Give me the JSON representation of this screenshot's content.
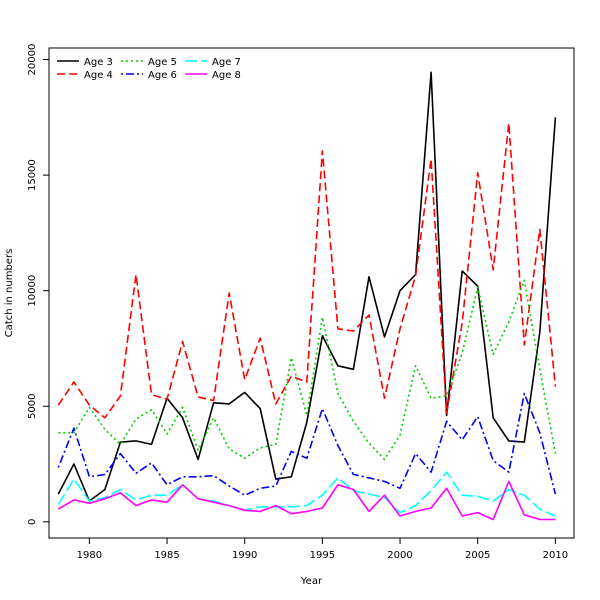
{
  "chart_data": {
    "type": "line",
    "title": "",
    "xlabel": "Year",
    "ylabel": "Catch in numbers",
    "xlim": [
      1977.4,
      2011.2
    ],
    "ylim": [
      -700,
      20500
    ],
    "x_ticks": [
      1980,
      1985,
      1990,
      1995,
      2000,
      2005,
      2010
    ],
    "y_ticks": [
      0,
      5000,
      10000,
      15000,
      20000
    ],
    "grid": false,
    "legend_position": "top-left",
    "x": [
      1978,
      1979,
      1980,
      1981,
      1982,
      1983,
      1984,
      1985,
      1986,
      1987,
      1988,
      1989,
      1990,
      1991,
      1992,
      1993,
      1994,
      1995,
      1996,
      1997,
      1998,
      1999,
      2000,
      2001,
      2002,
      2003,
      2004,
      2005,
      2006,
      2007,
      2008,
      2009,
      2010
    ],
    "series": [
      {
        "name": "Age 3",
        "color": "#000000",
        "dash": "solid",
        "values": [
          1200,
          2500,
          900,
          1400,
          3450,
          3500,
          3350,
          5350,
          4500,
          2700,
          5150,
          5100,
          5600,
          4900,
          1850,
          1950,
          4300,
          8050,
          6750,
          6600,
          10600,
          8000,
          10000,
          10700,
          19450,
          4600,
          10850,
          10200,
          4500,
          3500,
          3450,
          8200,
          17500
        ]
      },
      {
        "name": "Age 4",
        "color": "#ff0000",
        "dash": "dashed",
        "values": [
          5050,
          6050,
          5050,
          4500,
          5450,
          10700,
          5500,
          5300,
          7800,
          5400,
          5250,
          9900,
          6150,
          7950,
          5100,
          6300,
          6050,
          16050,
          8350,
          8250,
          8950,
          5350,
          8350,
          10650,
          15700,
          4700,
          8600,
          15100,
          10900,
          17250,
          7650,
          12650,
          5850
        ]
      },
      {
        "name": "Age 5",
        "color": "#00cd00",
        "dash": "dotted",
        "values": [
          3850,
          3850,
          4950,
          4000,
          3350,
          4450,
          4850,
          3800,
          4950,
          3100,
          4500,
          3150,
          2750,
          3200,
          3350,
          7100,
          4600,
          8850,
          5550,
          4350,
          3400,
          2700,
          3750,
          6750,
          5350,
          5450,
          7300,
          10150,
          7250,
          8650,
          10450,
          6600,
          2950
        ]
      },
      {
        "name": "Age 6",
        "color": "#0000ff",
        "dash": "dotdash",
        "values": [
          2350,
          4050,
          1950,
          2050,
          2950,
          2100,
          2550,
          1600,
          1950,
          1950,
          2000,
          1550,
          1150,
          1450,
          1550,
          3050,
          2750,
          4900,
          3300,
          2050,
          1900,
          1750,
          1450,
          2950,
          2150,
          4350,
          3550,
          4550,
          2650,
          2150,
          5550,
          3850,
          1200
        ]
      },
      {
        "name": "Age 7",
        "color": "#00ffff",
        "dash": "longdash",
        "values": [
          750,
          1850,
          900,
          1050,
          1400,
          950,
          1150,
          1150,
          1600,
          1000,
          900,
          700,
          500,
          650,
          650,
          650,
          700,
          1150,
          1900,
          1350,
          1200,
          1050,
          400,
          700,
          1350,
          2150,
          1150,
          1100,
          900,
          1400,
          1150,
          550,
          250
        ]
      },
      {
        "name": "Age 8",
        "color": "#ff00ff",
        "dash": "solid",
        "values": [
          550,
          950,
          800,
          1000,
          1250,
          700,
          950,
          850,
          1600,
          1000,
          850,
          700,
          500,
          450,
          700,
          350,
          450,
          600,
          1600,
          1400,
          450,
          1150,
          250,
          450,
          600,
          1450,
          250,
          400,
          100,
          1750,
          300,
          100,
          100
        ]
      }
    ]
  }
}
